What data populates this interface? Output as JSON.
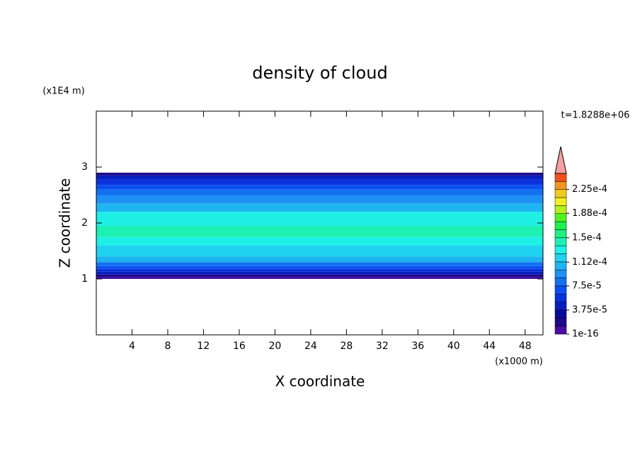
{
  "chart_data": {
    "type": "contour",
    "title": "density of cloud",
    "subtitle": "t=1.8288e+06",
    "x_label": "X coordinate",
    "x_unit": "(x1000 m)",
    "y_label": "Z coordinate",
    "y_unit": "(x1E4 m)",
    "xlim": [
      0,
      50
    ],
    "xticks": [
      4,
      8,
      12,
      16,
      20,
      24,
      28,
      32,
      36,
      40,
      44,
      48
    ],
    "ylim": [
      0,
      4
    ],
    "yticks": [
      1,
      2,
      3
    ],
    "z_edges": [
      1.0,
      1.03,
      1.08,
      1.13,
      1.18,
      1.23,
      1.3,
      1.4,
      1.6,
      1.75,
      1.95,
      2.2,
      2.35,
      2.5,
      2.6,
      2.68,
      2.78,
      2.85,
      2.9
    ],
    "values": [
      5e-06,
      2e-05,
      4e-05,
      5.5e-05,
      7e-05,
      8e-05,
      0.000105,
      0.00012,
      0.00013,
      0.00014,
      0.00013,
      0.000105,
      9e-05,
      8e-05,
      7e-05,
      5.5e-05,
      4e-05,
      2e-05
    ],
    "clim": [
      1e-16,
      0.00025
    ],
    "colors": [
      "#4b0aa0",
      "#1e0a8c",
      "#0a0a9c",
      "#0a1ebe",
      "#0a32dc",
      "#0a50f0",
      "#1470f0",
      "#1e90f5",
      "#1eb4f0",
      "#1ed2f0",
      "#1ef0e6",
      "#1ef0b4",
      "#1ef082",
      "#1ef050",
      "#50f01e",
      "#b4f01e",
      "#f0f01e",
      "#f0c81e",
      "#f0961e",
      "#f0501e"
    ],
    "over_color": "#f5a0a0",
    "cticks": [
      1e-16,
      {
        "value": 3.75e-05,
        "label": "3.75e-5"
      },
      {
        "value": 7.5e-05,
        "label": "7.5e-5"
      },
      {
        "value": 0.000112,
        "label": "1.12e-4"
      },
      {
        "value": 0.00015,
        "label": "1.5e-4"
      },
      {
        "value": 0.000188,
        "label": "1.88e-4"
      },
      {
        "value": 0.000225,
        "label": "2.25e-4"
      }
    ]
  }
}
